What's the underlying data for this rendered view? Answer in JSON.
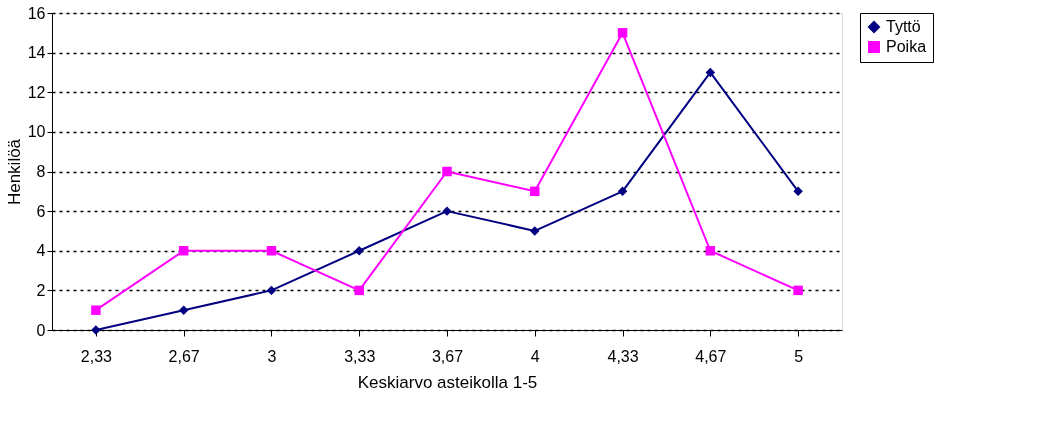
{
  "chart_data": {
    "type": "line",
    "xlabel": "Keskiarvo asteikolla 1-5",
    "ylabel": "Henkilöä",
    "categories": [
      "2,33",
      "2,67",
      "3",
      "3,33",
      "3,67",
      "4",
      "4,33",
      "4,67",
      "5"
    ],
    "series": [
      {
        "name": "Tyttö",
        "color": "#000080",
        "marker": "diamond",
        "values": [
          0,
          1,
          2,
          4,
          6,
          5,
          7,
          13,
          7
        ]
      },
      {
        "name": "Poika",
        "color": "#ff00ff",
        "marker": "square",
        "values": [
          1,
          4,
          4,
          2,
          8,
          7,
          15,
          4,
          2
        ]
      }
    ],
    "ylim": [
      0,
      16
    ],
    "yticks": [
      0,
      2,
      4,
      6,
      8,
      10,
      12,
      14,
      16
    ],
    "grid": "y",
    "legend": "right",
    "line_style": "solid"
  }
}
